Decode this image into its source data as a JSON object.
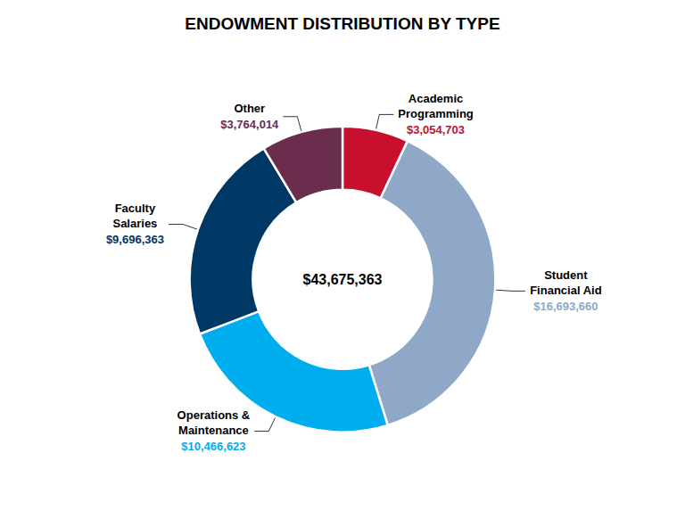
{
  "chart_data": {
    "type": "pie",
    "title": "ENDOWMENT DISTRIBUTION BY TYPE",
    "annotations": [
      "$43,675,363"
    ],
    "categories": [
      "Academic\nProgramming",
      "Student\nFinancial Aid",
      "Operations &\nMaintenance",
      "Faculty\nSalaries",
      "Other"
    ],
    "values": [
      3054703,
      16693660,
      10466623,
      9696363,
      3764014
    ],
    "value_labels": [
      "$3,054,703",
      "$16,693,660",
      "$10,466,623",
      "$9,696,363",
      "$3,764,014"
    ],
    "colors": [
      "#C8102E",
      "#8FA8C8",
      "#00AEEF",
      "#003865",
      "#6B2D4E"
    ],
    "data_labels": true
  }
}
